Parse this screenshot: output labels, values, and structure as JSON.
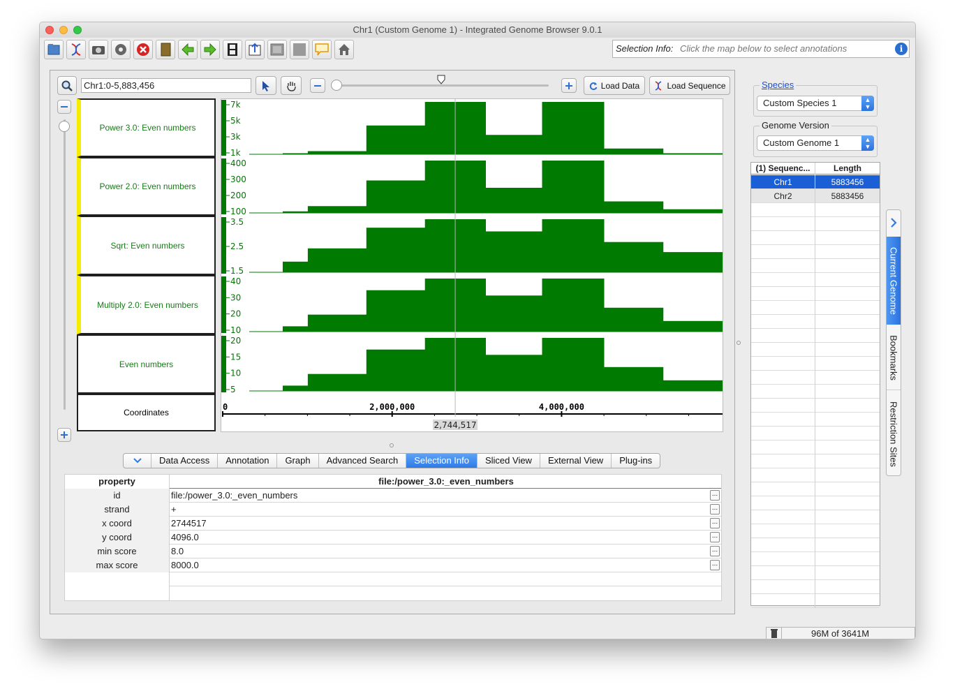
{
  "window": {
    "title": "Chr1  (Custom Genome 1) - Integrated Genome Browser 9.0.1"
  },
  "toolbar": {
    "icons": [
      "open-folder-icon",
      "dna-icon",
      "camera-icon",
      "gear-icon",
      "stop-icon",
      "notebook-icon",
      "arrow-left-icon",
      "arrow-right-icon",
      "film-icon",
      "export-icon",
      "panel-icon",
      "grid-icon",
      "speech-bubble-icon",
      "home-icon"
    ],
    "selection_info_label": "Selection Info:",
    "selection_info_placeholder": "Click the map below to select annotations"
  },
  "mapbar": {
    "location": "Chr1:0-5,883,456",
    "load_data": "Load Data",
    "load_sequence": "Load Sequence"
  },
  "tracks": [
    {
      "label": "Power 3.0: Even numbers",
      "ticks": [
        "7k",
        "5k",
        "3k",
        "1k"
      ],
      "values": [
        0.02,
        0.06,
        0.55,
        1.0,
        0.37,
        1.0,
        0.11,
        0.02,
        0.01
      ]
    },
    {
      "label": "Power 2.0: Even numbers",
      "ticks": [
        "400",
        "300",
        "200",
        "100"
      ],
      "values": [
        0.03,
        0.13,
        0.62,
        1.0,
        0.48,
        1.0,
        0.22,
        0.07,
        0.03
      ]
    },
    {
      "label": "Sqrt: Even numbers",
      "ticks": [
        "3.5",
        "2.5",
        "1.5"
      ],
      "values": [
        0.2,
        0.45,
        0.84,
        1.0,
        0.77,
        1.0,
        0.57,
        0.38,
        0.2
      ]
    },
    {
      "label": "Multiply 2.0: Even numbers",
      "ticks": [
        "40",
        "30",
        "20",
        "10"
      ],
      "values": [
        0.1,
        0.32,
        0.78,
        1.0,
        0.68,
        1.0,
        0.45,
        0.2,
        0.1
      ]
    },
    {
      "label": "Even numbers",
      "ticks": [
        "20",
        "15",
        "10",
        "5"
      ],
      "values": [
        0.1,
        0.32,
        0.78,
        1.0,
        0.68,
        1.0,
        0.45,
        0.2,
        0.1
      ]
    }
  ],
  "coordinates": {
    "label": "Coordinates",
    "ticks": [
      "0",
      "2,000,000",
      "4,000,000"
    ],
    "tick_values": [
      0,
      2000000,
      4000000
    ],
    "selected": "2,744,517",
    "selected_value": 2744517,
    "max": 5883456
  },
  "tabs": [
    "Data Access",
    "Annotation",
    "Graph",
    "Advanced Search",
    "Selection Info",
    "Sliced View",
    "External View",
    "Plug-ins"
  ],
  "active_tab": "Selection Info",
  "properties": {
    "header_key": "property",
    "header_value": "file:/power_3.0:_even_numbers",
    "rows": [
      {
        "key": "id",
        "value": "file:/power_3.0:_even_numbers"
      },
      {
        "key": "strand",
        "value": "+"
      },
      {
        "key": "x coord",
        "value": "2744517"
      },
      {
        "key": "y coord",
        "value": "4096.0"
      },
      {
        "key": "min score",
        "value": "8.0"
      },
      {
        "key": "max score",
        "value": "8000.0"
      }
    ],
    "dots_label": "..."
  },
  "sidebar": {
    "species_title": "Species",
    "species_value": "Custom Species 1",
    "genome_title": "Genome Version",
    "genome_value": "Custom Genome 1",
    "seq_header": [
      "(1) Sequenc...",
      "Length"
    ],
    "sequences": [
      {
        "name": "Chr1",
        "length": "5883456"
      },
      {
        "name": "Chr2",
        "length": "5883456"
      }
    ]
  },
  "vertical_tabs": [
    "Current Genome",
    "Bookmarks",
    "Restriction Sites"
  ],
  "status": {
    "memory": "96M of 3641M"
  },
  "colors": {
    "track_green": "#007a00",
    "accent_blue": "#2f7ae8",
    "selected_row": "#1b5fd6"
  }
}
